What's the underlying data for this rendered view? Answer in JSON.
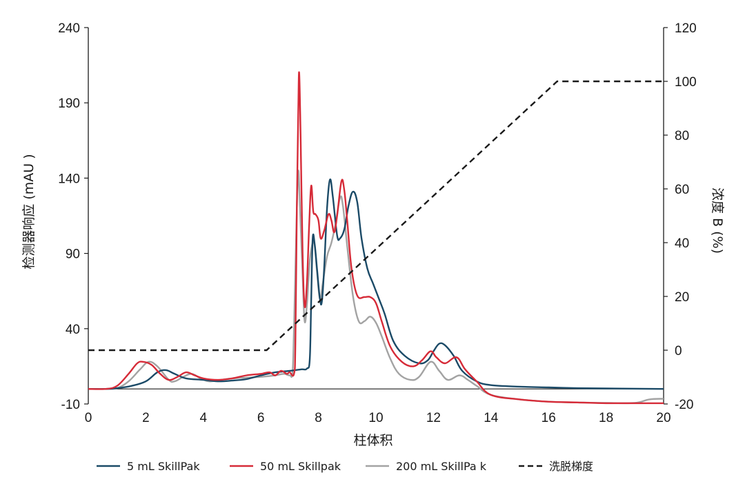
{
  "chart_data": {
    "type": "line",
    "xlabel": "柱体积",
    "ylabel_left": "检测器响应 (mAU )",
    "ylabel_right": "浓度 B (%)",
    "xlim": [
      0,
      20
    ],
    "ylim_left": [
      -10,
      240
    ],
    "ylim_right": [
      -20,
      120
    ],
    "x_ticks": [
      "0",
      "2",
      "4",
      "6",
      "8",
      "10",
      "12",
      "14",
      "16",
      "18",
      "20"
    ],
    "y_left_ticks": [
      "-10",
      "40",
      "90",
      "140",
      "190",
      "240"
    ],
    "y_right_ticks": [
      "-20",
      "0",
      "20",
      "40",
      "60",
      "80",
      "100",
      "120"
    ],
    "baseline": 0,
    "grid": false,
    "legend_position": "bottom",
    "series": [
      {
        "name": "5 mL SkillPak",
        "color": "#1b4a67",
        "axis": "left",
        "points": [
          [
            0,
            0
          ],
          [
            0.6,
            0
          ],
          [
            1.0,
            0.5
          ],
          [
            1.5,
            2
          ],
          [
            2.0,
            5
          ],
          [
            2.4,
            11
          ],
          [
            2.7,
            12.5
          ],
          [
            3.0,
            10
          ],
          [
            3.4,
            7
          ],
          [
            4.0,
            6
          ],
          [
            4.5,
            5
          ],
          [
            5.0,
            5.5
          ],
          [
            5.5,
            6.5
          ],
          [
            6.0,
            9
          ],
          [
            6.5,
            11
          ],
          [
            7.0,
            12
          ],
          [
            7.4,
            13
          ],
          [
            7.6,
            13.5
          ],
          [
            7.7,
            20
          ],
          [
            7.75,
            60
          ],
          [
            7.8,
            100
          ],
          [
            7.87,
            96
          ],
          [
            7.95,
            80
          ],
          [
            8.05,
            60
          ],
          [
            8.12,
            58
          ],
          [
            8.2,
            80
          ],
          [
            8.3,
            120
          ],
          [
            8.4,
            139
          ],
          [
            8.5,
            128
          ],
          [
            8.65,
            102
          ],
          [
            8.75,
            100
          ],
          [
            8.9,
            106
          ],
          [
            9.05,
            122
          ],
          [
            9.2,
            131
          ],
          [
            9.35,
            124
          ],
          [
            9.5,
            100
          ],
          [
            9.7,
            80
          ],
          [
            9.9,
            70
          ],
          [
            10.1,
            60
          ],
          [
            10.3,
            50
          ],
          [
            10.6,
            32
          ],
          [
            11.0,
            22
          ],
          [
            11.5,
            17
          ],
          [
            11.8,
            19
          ],
          [
            12.0,
            25
          ],
          [
            12.2,
            30
          ],
          [
            12.4,
            29
          ],
          [
            12.7,
            22
          ],
          [
            13.0,
            12
          ],
          [
            13.5,
            5
          ],
          [
            14,
            2.5
          ],
          [
            15,
            1.5
          ],
          [
            16,
            1
          ],
          [
            17,
            0.5
          ],
          [
            18,
            0.3
          ],
          [
            20,
            0
          ]
        ]
      },
      {
        "name": "50 mL Skillpak",
        "color": "#d62b38",
        "axis": "left",
        "points": [
          [
            0,
            0
          ],
          [
            0.6,
            0
          ],
          [
            1.0,
            2
          ],
          [
            1.4,
            10
          ],
          [
            1.7,
            17
          ],
          [
            1.9,
            18
          ],
          [
            2.2,
            16
          ],
          [
            2.5,
            10
          ],
          [
            2.8,
            6
          ],
          [
            3.1,
            8
          ],
          [
            3.4,
            11
          ],
          [
            3.7,
            9
          ],
          [
            4.0,
            7
          ],
          [
            4.5,
            6
          ],
          [
            5.0,
            7
          ],
          [
            5.5,
            9
          ],
          [
            6.0,
            10
          ],
          [
            6.3,
            11
          ],
          [
            6.5,
            9
          ],
          [
            6.7,
            12
          ],
          [
            6.9,
            10
          ],
          [
            7.0,
            11
          ],
          [
            7.15,
            10
          ],
          [
            7.2,
            30
          ],
          [
            7.25,
            120
          ],
          [
            7.3,
            185
          ],
          [
            7.33,
            210
          ],
          [
            7.38,
            170
          ],
          [
            7.45,
            90
          ],
          [
            7.52,
            55
          ],
          [
            7.6,
            70
          ],
          [
            7.68,
            110
          ],
          [
            7.75,
            135
          ],
          [
            7.82,
            118
          ],
          [
            7.9,
            116
          ],
          [
            8.0,
            112
          ],
          [
            8.08,
            100
          ],
          [
            8.2,
            105
          ],
          [
            8.35,
            116
          ],
          [
            8.45,
            112
          ],
          [
            8.55,
            104
          ],
          [
            8.65,
            115
          ],
          [
            8.8,
            138
          ],
          [
            8.9,
            132
          ],
          [
            9.0,
            112
          ],
          [
            9.15,
            80
          ],
          [
            9.35,
            62
          ],
          [
            9.6,
            61
          ],
          [
            9.8,
            61
          ],
          [
            10.0,
            57
          ],
          [
            10.2,
            45
          ],
          [
            10.5,
            28
          ],
          [
            10.9,
            18
          ],
          [
            11.3,
            15
          ],
          [
            11.6,
            19
          ],
          [
            11.9,
            25
          ],
          [
            12.1,
            21
          ],
          [
            12.4,
            17
          ],
          [
            12.8,
            21
          ],
          [
            13.1,
            13
          ],
          [
            13.5,
            5
          ],
          [
            14,
            -4
          ],
          [
            15,
            -7
          ],
          [
            16,
            -8.5
          ],
          [
            17,
            -9
          ],
          [
            18,
            -9.5
          ],
          [
            19,
            -9.5
          ],
          [
            20,
            -9.5
          ]
        ]
      },
      {
        "name": "200 mL SkillPa k",
        "color": "#a3a3a3",
        "axis": "left",
        "points": [
          [
            0,
            0
          ],
          [
            0.6,
            0
          ],
          [
            1.0,
            0.5
          ],
          [
            1.4,
            5
          ],
          [
            1.8,
            13
          ],
          [
            2.1,
            18
          ],
          [
            2.4,
            15
          ],
          [
            2.8,
            6
          ],
          [
            3.0,
            5
          ],
          [
            3.3,
            8
          ],
          [
            3.6,
            10
          ],
          [
            3.9,
            7
          ],
          [
            4.2,
            5
          ],
          [
            4.6,
            6
          ],
          [
            5.0,
            7
          ],
          [
            5.5,
            7.5
          ],
          [
            6.0,
            8
          ],
          [
            6.5,
            9
          ],
          [
            6.8,
            10
          ],
          [
            7.0,
            9
          ],
          [
            7.1,
            11
          ],
          [
            7.15,
            40
          ],
          [
            7.25,
            120
          ],
          [
            7.3,
            145
          ],
          [
            7.35,
            125
          ],
          [
            7.45,
            75
          ],
          [
            7.52,
            45
          ],
          [
            7.6,
            56
          ],
          [
            7.7,
            85
          ],
          [
            7.8,
            97
          ],
          [
            7.87,
            95
          ],
          [
            7.95,
            78
          ],
          [
            8.05,
            60
          ],
          [
            8.15,
            70
          ],
          [
            8.3,
            88
          ],
          [
            8.45,
            97
          ],
          [
            8.6,
            110
          ],
          [
            8.75,
            127
          ],
          [
            8.85,
            122
          ],
          [
            9.0,
            95
          ],
          [
            9.2,
            62
          ],
          [
            9.4,
            45
          ],
          [
            9.6,
            45
          ],
          [
            9.8,
            48
          ],
          [
            10.0,
            44
          ],
          [
            10.2,
            35
          ],
          [
            10.5,
            20
          ],
          [
            10.8,
            10
          ],
          [
            11.2,
            6
          ],
          [
            11.5,
            8
          ],
          [
            11.9,
            18
          ],
          [
            12.2,
            12
          ],
          [
            12.5,
            6
          ],
          [
            12.9,
            9
          ],
          [
            13.2,
            6
          ],
          [
            13.5,
            2
          ],
          [
            14,
            -4
          ],
          [
            15,
            -7
          ],
          [
            16,
            -8.5
          ],
          [
            17,
            -9
          ],
          [
            18,
            -9.3
          ],
          [
            19,
            -9.3
          ],
          [
            19.5,
            -7
          ],
          [
            20,
            -6.5
          ]
        ]
      },
      {
        "name": "洗脱梯度",
        "color": "#1a1a1a",
        "axis": "right",
        "dashed": true,
        "points": [
          [
            0,
            0
          ],
          [
            6.2,
            0
          ],
          [
            16.3,
            100
          ],
          [
            20,
            100
          ]
        ]
      }
    ]
  }
}
